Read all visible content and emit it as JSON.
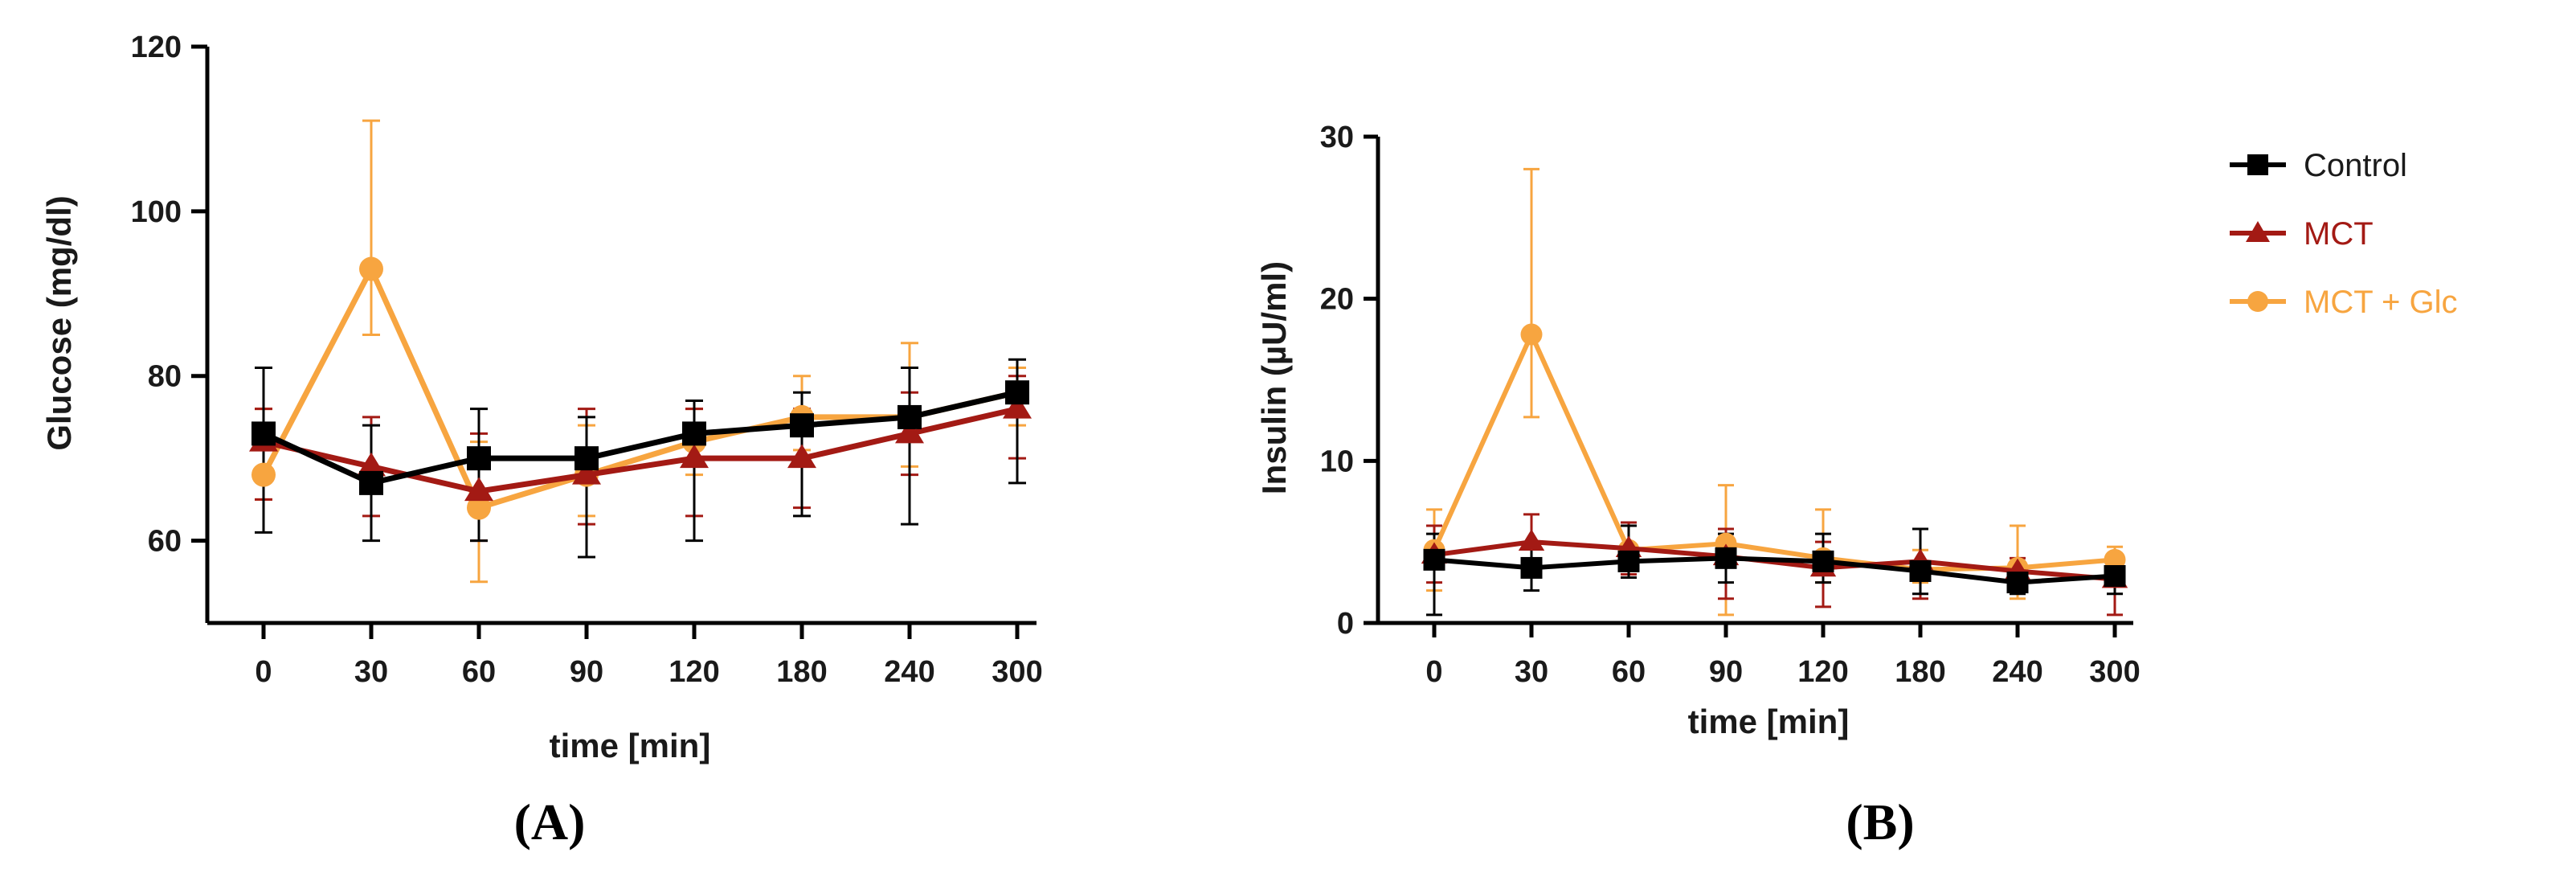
{
  "chart_data": [
    {
      "type": "line",
      "panel": "A",
      "panel_label": "(A)",
      "title": "",
      "xlabel": "time [min]",
      "ylabel": "Glucose (mg/dl)",
      "categories": [
        "0",
        "30",
        "60",
        "90",
        "120",
        "180",
        "240",
        "300"
      ],
      "ylim": [
        50,
        120
      ],
      "yticks": [
        "60",
        "80",
        "100",
        "120"
      ],
      "series": [
        {
          "name": "Control",
          "color": "#000000",
          "marker": "square",
          "values": [
            73,
            67,
            70,
            70,
            73,
            74,
            75,
            78
          ],
          "lower": [
            61,
            60,
            60,
            58,
            60,
            63,
            62,
            67
          ],
          "upper": [
            81,
            74,
            76,
            75,
            77,
            78,
            81,
            82
          ]
        },
        {
          "name": "MCT",
          "color": "#a31a14",
          "marker": "triangle",
          "values": [
            72,
            69,
            66,
            68,
            70,
            70,
            73,
            76
          ],
          "lower": [
            65,
            63,
            60,
            62,
            63,
            64,
            68,
            70
          ],
          "upper": [
            76,
            75,
            73,
            76,
            76,
            76,
            78,
            80
          ]
        },
        {
          "name": "MCT + Glc",
          "color": "#f7a540",
          "marker": "circle",
          "values": [
            68,
            93,
            64,
            68,
            72,
            75,
            75,
            78
          ],
          "lower": [
            65,
            85,
            55,
            63,
            68,
            71,
            69,
            74
          ],
          "upper": [
            76,
            111,
            72,
            74,
            76,
            80,
            84,
            81
          ]
        }
      ]
    },
    {
      "type": "line",
      "panel": "B",
      "panel_label": "(B)",
      "title": "",
      "xlabel": "time [min]",
      "ylabel": "Insulin (µU/ml)",
      "categories": [
        "0",
        "30",
        "60",
        "90",
        "120",
        "180",
        "240",
        "300"
      ],
      "ylim": [
        0,
        30
      ],
      "yticks": [
        "0",
        "10",
        "20",
        "30"
      ],
      "legend": {
        "placement": "right",
        "entries": [
          "Control",
          "MCT",
          "MCT + Glc"
        ]
      },
      "series": [
        {
          "name": "Control",
          "color": "#000000",
          "marker": "square",
          "values": [
            3.9,
            3.4,
            3.8,
            4.0,
            3.8,
            3.2,
            2.5,
            2.9
          ],
          "lower": [
            0.5,
            2.0,
            2.8,
            2.5,
            2.5,
            1.8,
            1.8,
            1.8
          ],
          "upper": [
            5.5,
            5.0,
            6.0,
            5.5,
            5.5,
            5.8,
            3.8,
            4.2
          ]
        },
        {
          "name": "MCT",
          "color": "#a31a14",
          "marker": "triangle",
          "values": [
            4.2,
            5.0,
            4.6,
            4.1,
            3.4,
            3.8,
            3.2,
            2.7
          ],
          "lower": [
            2.5,
            3.5,
            3.0,
            1.5,
            1.0,
            1.5,
            2.5,
            0.5
          ],
          "upper": [
            6.0,
            6.7,
            6.2,
            5.8,
            5.0,
            5.8,
            4.0,
            4.0
          ]
        },
        {
          "name": "MCT + Glc",
          "color": "#f7a540",
          "marker": "circle",
          "values": [
            4.5,
            17.8,
            4.5,
            4.9,
            4.0,
            3.3,
            3.4,
            3.9
          ],
          "lower": [
            2.0,
            12.7,
            3.2,
            0.5,
            2.5,
            2.5,
            1.5,
            3.0
          ],
          "upper": [
            7.0,
            28.0,
            6.0,
            8.5,
            7.0,
            4.5,
            6.0,
            4.7
          ]
        }
      ]
    }
  ]
}
